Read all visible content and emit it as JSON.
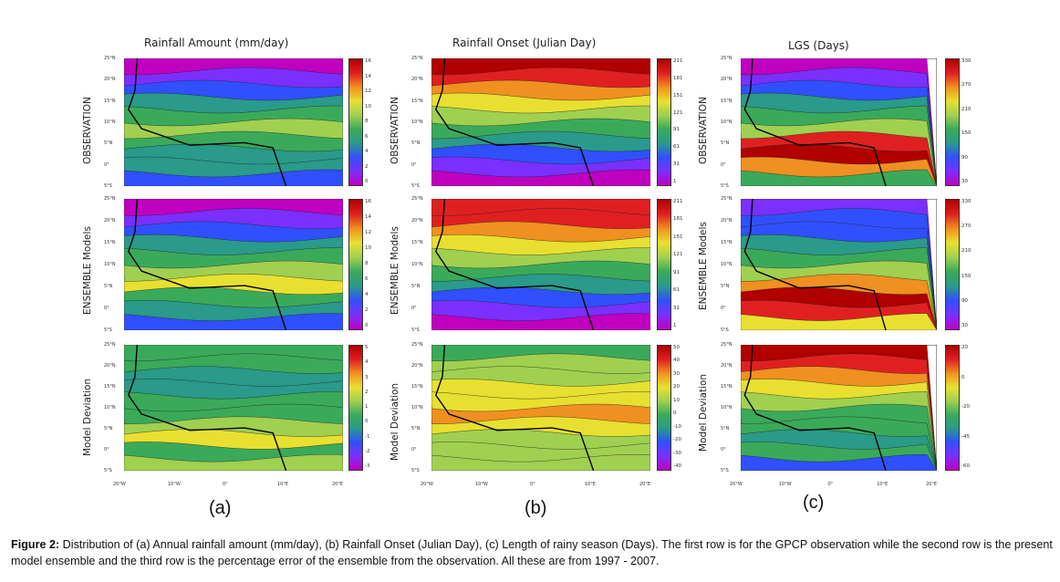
{
  "columns": [
    {
      "title": "Rainfall Amount (mm/day)",
      "label": "(a)",
      "rows": [
        {
          "label": "OBSERVATION",
          "cbar_ticks": [
            "16",
            "14",
            "12",
            "10",
            "8",
            "6",
            "4",
            "2",
            "0"
          ],
          "palette": [
            "#c000c0",
            "#7a30ff",
            "#3050ff",
            "#2a9a8a",
            "#3aaa5a",
            "#a0d050",
            "#e8e030",
            "#f09020",
            "#e02020",
            "#b00000"
          ]
        },
        {
          "label": "ENSEMBLE Models",
          "cbar_ticks": [
            "16",
            "14",
            "12",
            "10",
            "8",
            "6",
            "4",
            "2",
            "0"
          ],
          "palette": [
            "#c000c0",
            "#7a30ff",
            "#3050ff",
            "#2a9a8a",
            "#3aaa5a",
            "#a0d050",
            "#e8e030",
            "#f09020",
            "#e02020",
            "#b00000"
          ]
        },
        {
          "label": "Model Deviation",
          "cbar_ticks": [
            "5",
            "4",
            "3",
            "2",
            "1",
            "0",
            "-1",
            "-2",
            "-3"
          ],
          "palette": [
            "#c000c0",
            "#7a30ff",
            "#3050ff",
            "#2a9a8a",
            "#3aaa5a",
            "#a0d050",
            "#e8e030",
            "#f09020",
            "#e02020",
            "#b00000"
          ]
        }
      ]
    },
    {
      "title": "Rainfall Onset (Julian Day)",
      "label": "(b)",
      "rows": [
        {
          "label": "OBSERVATION",
          "cbar_ticks": [
            "211",
            "181",
            "151",
            "121",
            "91",
            "61",
            "31",
            "1"
          ],
          "palette": [
            "#c000c0",
            "#7a30ff",
            "#3050ff",
            "#2a9a8a",
            "#3aaa5a",
            "#a0d050",
            "#e8e030",
            "#f09020",
            "#e02020",
            "#b00000"
          ]
        },
        {
          "label": "ENSEMBLE Models",
          "cbar_ticks": [
            "211",
            "181",
            "151",
            "121",
            "91",
            "61",
            "31",
            "1"
          ],
          "palette": [
            "#c000c0",
            "#7a30ff",
            "#3050ff",
            "#2a9a8a",
            "#3aaa5a",
            "#a0d050",
            "#e8e030",
            "#f09020",
            "#e02020",
            "#b00000"
          ]
        },
        {
          "label": "Model Deviation",
          "cbar_ticks": [
            "50",
            "40",
            "30",
            "20",
            "10",
            "0",
            "-10",
            "-20",
            "-30",
            "-40"
          ],
          "palette": [
            "#c000c0",
            "#7a30ff",
            "#3050ff",
            "#2a9a8a",
            "#3aaa5a",
            "#a0d050",
            "#e8e030",
            "#f09020",
            "#e02020",
            "#b00000"
          ]
        }
      ]
    },
    {
      "title": "LGS (Days)",
      "label": "(c)",
      "rows": [
        {
          "label": "OBSERVATION",
          "cbar_ticks": [
            "330",
            "270",
            "210",
            "150",
            "90",
            "30"
          ],
          "palette": [
            "#c000c0",
            "#7a30ff",
            "#3050ff",
            "#2a9a8a",
            "#3aaa5a",
            "#a0d050",
            "#e8e030",
            "#f09020",
            "#e02020",
            "#b00000"
          ]
        },
        {
          "label": "ENSEMBLE Models",
          "cbar_ticks": [
            "330",
            "270",
            "210",
            "150",
            "90",
            "30"
          ],
          "palette": [
            "#c000c0",
            "#7a30ff",
            "#3050ff",
            "#2a9a8a",
            "#3aaa5a",
            "#a0d050",
            "#e8e030",
            "#f09020",
            "#e02020",
            "#b00000"
          ]
        },
        {
          "label": "Model Deviation",
          "cbar_ticks": [
            "20",
            "0",
            "-20",
            "-45",
            "-60"
          ],
          "palette": [
            "#c000c0",
            "#7a30ff",
            "#3050ff",
            "#2a9a8a",
            "#3aaa5a",
            "#a0d050",
            "#e8e030",
            "#f09020",
            "#e02020",
            "#b00000"
          ]
        }
      ]
    }
  ],
  "lat_ticks": [
    "25°N",
    "20°N",
    "15°N",
    "10°N",
    "5°N",
    "0°",
    "5°S"
  ],
  "lon_ticks": [
    "20°W",
    "10°W",
    "0°",
    "10°E",
    "20°E"
  ],
  "caption": {
    "bold": "Figure 2:",
    "text": " Distribution of (a) Annual rainfall amount (mm/day), (b) Rainfall Onset (Julian Day), (c) Length of rainy season (Days). The first row is for the GPCP observation while the second row is the present model ensemble and the third row is the percentage error of the ensemble from the observation. All these are from 1997 - 2007."
  }
}
